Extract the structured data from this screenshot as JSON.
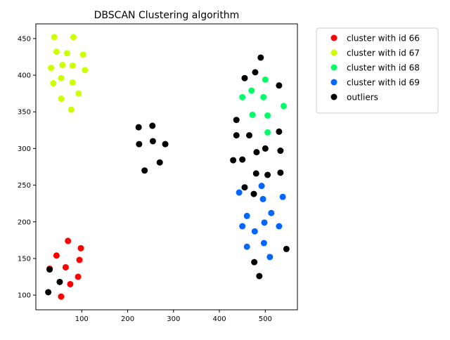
{
  "chart_data": {
    "type": "scatter",
    "title": "DBSCAN Clustering algorithm",
    "xlabel": "",
    "ylabel": "",
    "xlim": [
      0,
      570
    ],
    "ylim": [
      80,
      470
    ],
    "xticks": [
      100,
      200,
      300,
      400,
      500
    ],
    "yticks": [
      100,
      150,
      200,
      250,
      300,
      350,
      400,
      450
    ],
    "grid": false,
    "legend_position": "outside-top-right",
    "series": [
      {
        "name": "cluster with id 66",
        "color": "#ff0000",
        "points": [
          [
            70,
            174
          ],
          [
            98,
            164
          ],
          [
            45,
            154
          ],
          [
            95,
            148
          ],
          [
            30,
            136
          ],
          [
            65,
            138
          ],
          [
            92,
            125
          ],
          [
            75,
            115
          ],
          [
            55,
            98
          ]
        ]
      },
      {
        "name": "cluster with id 67",
        "color": "#ccff00",
        "points": [
          [
            40,
            452
          ],
          [
            82,
            452
          ],
          [
            45,
            432
          ],
          [
            68,
            430
          ],
          [
            103,
            428
          ],
          [
            58,
            414
          ],
          [
            80,
            413
          ],
          [
            33,
            410
          ],
          [
            107,
            407
          ],
          [
            55,
            396
          ],
          [
            80,
            390
          ],
          [
            38,
            389
          ],
          [
            93,
            375
          ],
          [
            55,
            368
          ],
          [
            77,
            353
          ]
        ]
      },
      {
        "name": "cluster with id 68",
        "color": "#00ff66",
        "points": [
          [
            500,
            394
          ],
          [
            470,
            379
          ],
          [
            450,
            370
          ],
          [
            496,
            370
          ],
          [
            540,
            358
          ],
          [
            472,
            346
          ],
          [
            505,
            345
          ],
          [
            505,
            322
          ]
        ]
      },
      {
        "name": "cluster with id 69",
        "color": "#0066ff",
        "points": [
          [
            492,
            249
          ],
          [
            443,
            240
          ],
          [
            538,
            234
          ],
          [
            495,
            231
          ],
          [
            513,
            212
          ],
          [
            460,
            208
          ],
          [
            498,
            199
          ],
          [
            450,
            194
          ],
          [
            530,
            194
          ],
          [
            477,
            187
          ],
          [
            497,
            171
          ],
          [
            460,
            166
          ],
          [
            510,
            152
          ]
        ]
      },
      {
        "name": "outliers",
        "color": "#000000",
        "points": [
          [
            490,
            424
          ],
          [
            478,
            404
          ],
          [
            455,
            396
          ],
          [
            530,
            386
          ],
          [
            437,
            339
          ],
          [
            224,
            329
          ],
          [
            254,
            331
          ],
          [
            530,
            323
          ],
          [
            437,
            318
          ],
          [
            465,
            318
          ],
          [
            225,
            306
          ],
          [
            255,
            310
          ],
          [
            282,
            306
          ],
          [
            500,
            300
          ],
          [
            533,
            297
          ],
          [
            481,
            295
          ],
          [
            430,
            284
          ],
          [
            450,
            285
          ],
          [
            270,
            281
          ],
          [
            237,
            270
          ],
          [
            480,
            266
          ],
          [
            505,
            264
          ],
          [
            533,
            267
          ],
          [
            455,
            247
          ],
          [
            475,
            238
          ],
          [
            546,
            163
          ],
          [
            476,
            145
          ],
          [
            487,
            126
          ],
          [
            30,
            135
          ],
          [
            52,
            118
          ],
          [
            27,
            104
          ]
        ]
      }
    ]
  }
}
